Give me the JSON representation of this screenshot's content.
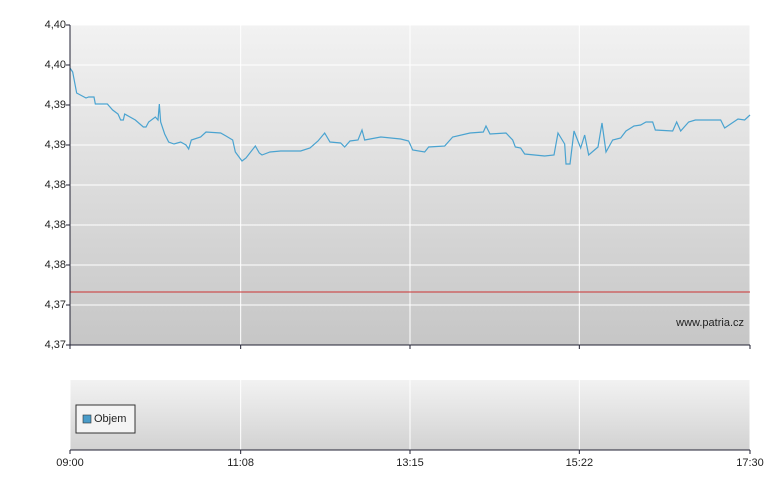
{
  "chart_data": [
    {
      "type": "line",
      "xlim": [
        "09:00",
        "17:30"
      ],
      "xticks": [
        "09:00",
        "11:08",
        "13:15",
        "15:22",
        "17:30"
      ],
      "ylim": [
        4.368,
        4.4
      ],
      "yticks": [
        {
          "value": 4.368,
          "label": "4,37"
        },
        {
          "value": 4.372,
          "label": "4,37"
        },
        {
          "value": 4.376,
          "label": "4,38"
        },
        {
          "value": 4.38,
          "label": "4,38"
        },
        {
          "value": 4.384,
          "label": "4,38"
        },
        {
          "value": 4.388,
          "label": "4,39"
        },
        {
          "value": 4.392,
          "label": "4,39"
        },
        {
          "value": 4.396,
          "label": "4,40"
        },
        {
          "value": 4.4,
          "label": "4,40"
        }
      ],
      "grid": true,
      "reference_line": {
        "value": 4.3733,
        "color": "#cc3333"
      },
      "annotation": "www.patria.cz",
      "x": [
        "09:00",
        "09:02",
        "09:05",
        "09:12",
        "09:14",
        "09:18",
        "09:19",
        "09:28",
        "09:32",
        "09:36",
        "09:38",
        "09:40",
        "09:41",
        "09:49",
        "09:55",
        "09:57",
        "09:59",
        "10:04",
        "10:06",
        "10:07",
        "10:08",
        "10:11",
        "10:14",
        "10:18",
        "10:23",
        "10:27",
        "10:29",
        "10:31",
        "10:38",
        "10:42",
        "10:53",
        "10:57",
        "11:02",
        "11:04",
        "11:09",
        "11:12",
        "11:19",
        "11:22",
        "11:24",
        "11:30",
        "11:38",
        "11:53",
        "12:00",
        "12:06",
        "12:11",
        "12:15",
        "12:23",
        "12:26",
        "12:30",
        "12:36",
        "12:39",
        "12:41",
        "12:53",
        "13:08",
        "13:14",
        "13:17",
        "13:26",
        "13:29",
        "13:41",
        "13:47",
        "14:00",
        "14:10",
        "14:12",
        "14:15",
        "14:27",
        "14:32",
        "14:34",
        "14:38",
        "14:41",
        "14:56",
        "15:03",
        "15:06",
        "15:11",
        "15:12",
        "15:15",
        "15:18",
        "15:23",
        "15:26",
        "15:29",
        "15:36",
        "15:39",
        "15:42",
        "15:47",
        "15:53",
        "15:57",
        "16:03",
        "16:08",
        "16:12",
        "16:17",
        "16:19",
        "16:32",
        "16:35",
        "16:38",
        "16:44",
        "16:49",
        "17:08",
        "17:11",
        "17:21",
        "17:26",
        "17:30"
      ],
      "series": [
        {
          "color": "#4aa3d0",
          "values": [
            4.3957,
            4.3953,
            4.3932,
            4.3927,
            4.3928,
            4.3928,
            4.3921,
            4.3921,
            4.3915,
            4.3911,
            4.3905,
            4.3905,
            4.3911,
            4.3905,
            4.3898,
            4.3898,
            4.3903,
            4.3908,
            4.3905,
            4.3921,
            4.3903,
            4.3891,
            4.3883,
            4.3881,
            4.3883,
            4.388,
            4.3876,
            4.3885,
            4.3888,
            4.3893,
            4.3892,
            4.3889,
            4.3885,
            4.3873,
            4.3864,
            4.3867,
            4.3879,
            4.3872,
            4.387,
            4.3873,
            4.3874,
            4.3874,
            4.3877,
            4.3884,
            4.3892,
            4.3883,
            4.3882,
            4.3878,
            4.3884,
            4.3885,
            4.3895,
            4.3885,
            4.3888,
            4.3886,
            4.3884,
            4.3875,
            4.3873,
            4.3878,
            4.3879,
            4.3888,
            4.3892,
            4.3893,
            4.3899,
            4.3891,
            4.3892,
            4.3885,
            4.3878,
            4.3877,
            4.3871,
            4.3869,
            4.387,
            4.3892,
            4.3881,
            4.3861,
            4.3861,
            4.3894,
            4.3877,
            4.389,
            4.387,
            4.3878,
            4.3902,
            4.3873,
            4.3885,
            4.3887,
            4.3894,
            4.3899,
            4.39,
            4.3903,
            4.3903,
            4.3895,
            4.3894,
            4.3903,
            4.3894,
            4.3903,
            4.3905,
            4.3905,
            4.3897,
            4.3906,
            4.3905,
            4.391
          ]
        }
      ]
    },
    {
      "type": "bar",
      "xlim": [
        "09:00",
        "17:30"
      ],
      "xticks": [
        "09:00",
        "11:08",
        "13:15",
        "15:22",
        "17:30"
      ],
      "legend": "bottom-left",
      "x": [],
      "series": [
        {
          "name": "Objem",
          "color": "#4a9cc9",
          "values": []
        }
      ]
    }
  ]
}
